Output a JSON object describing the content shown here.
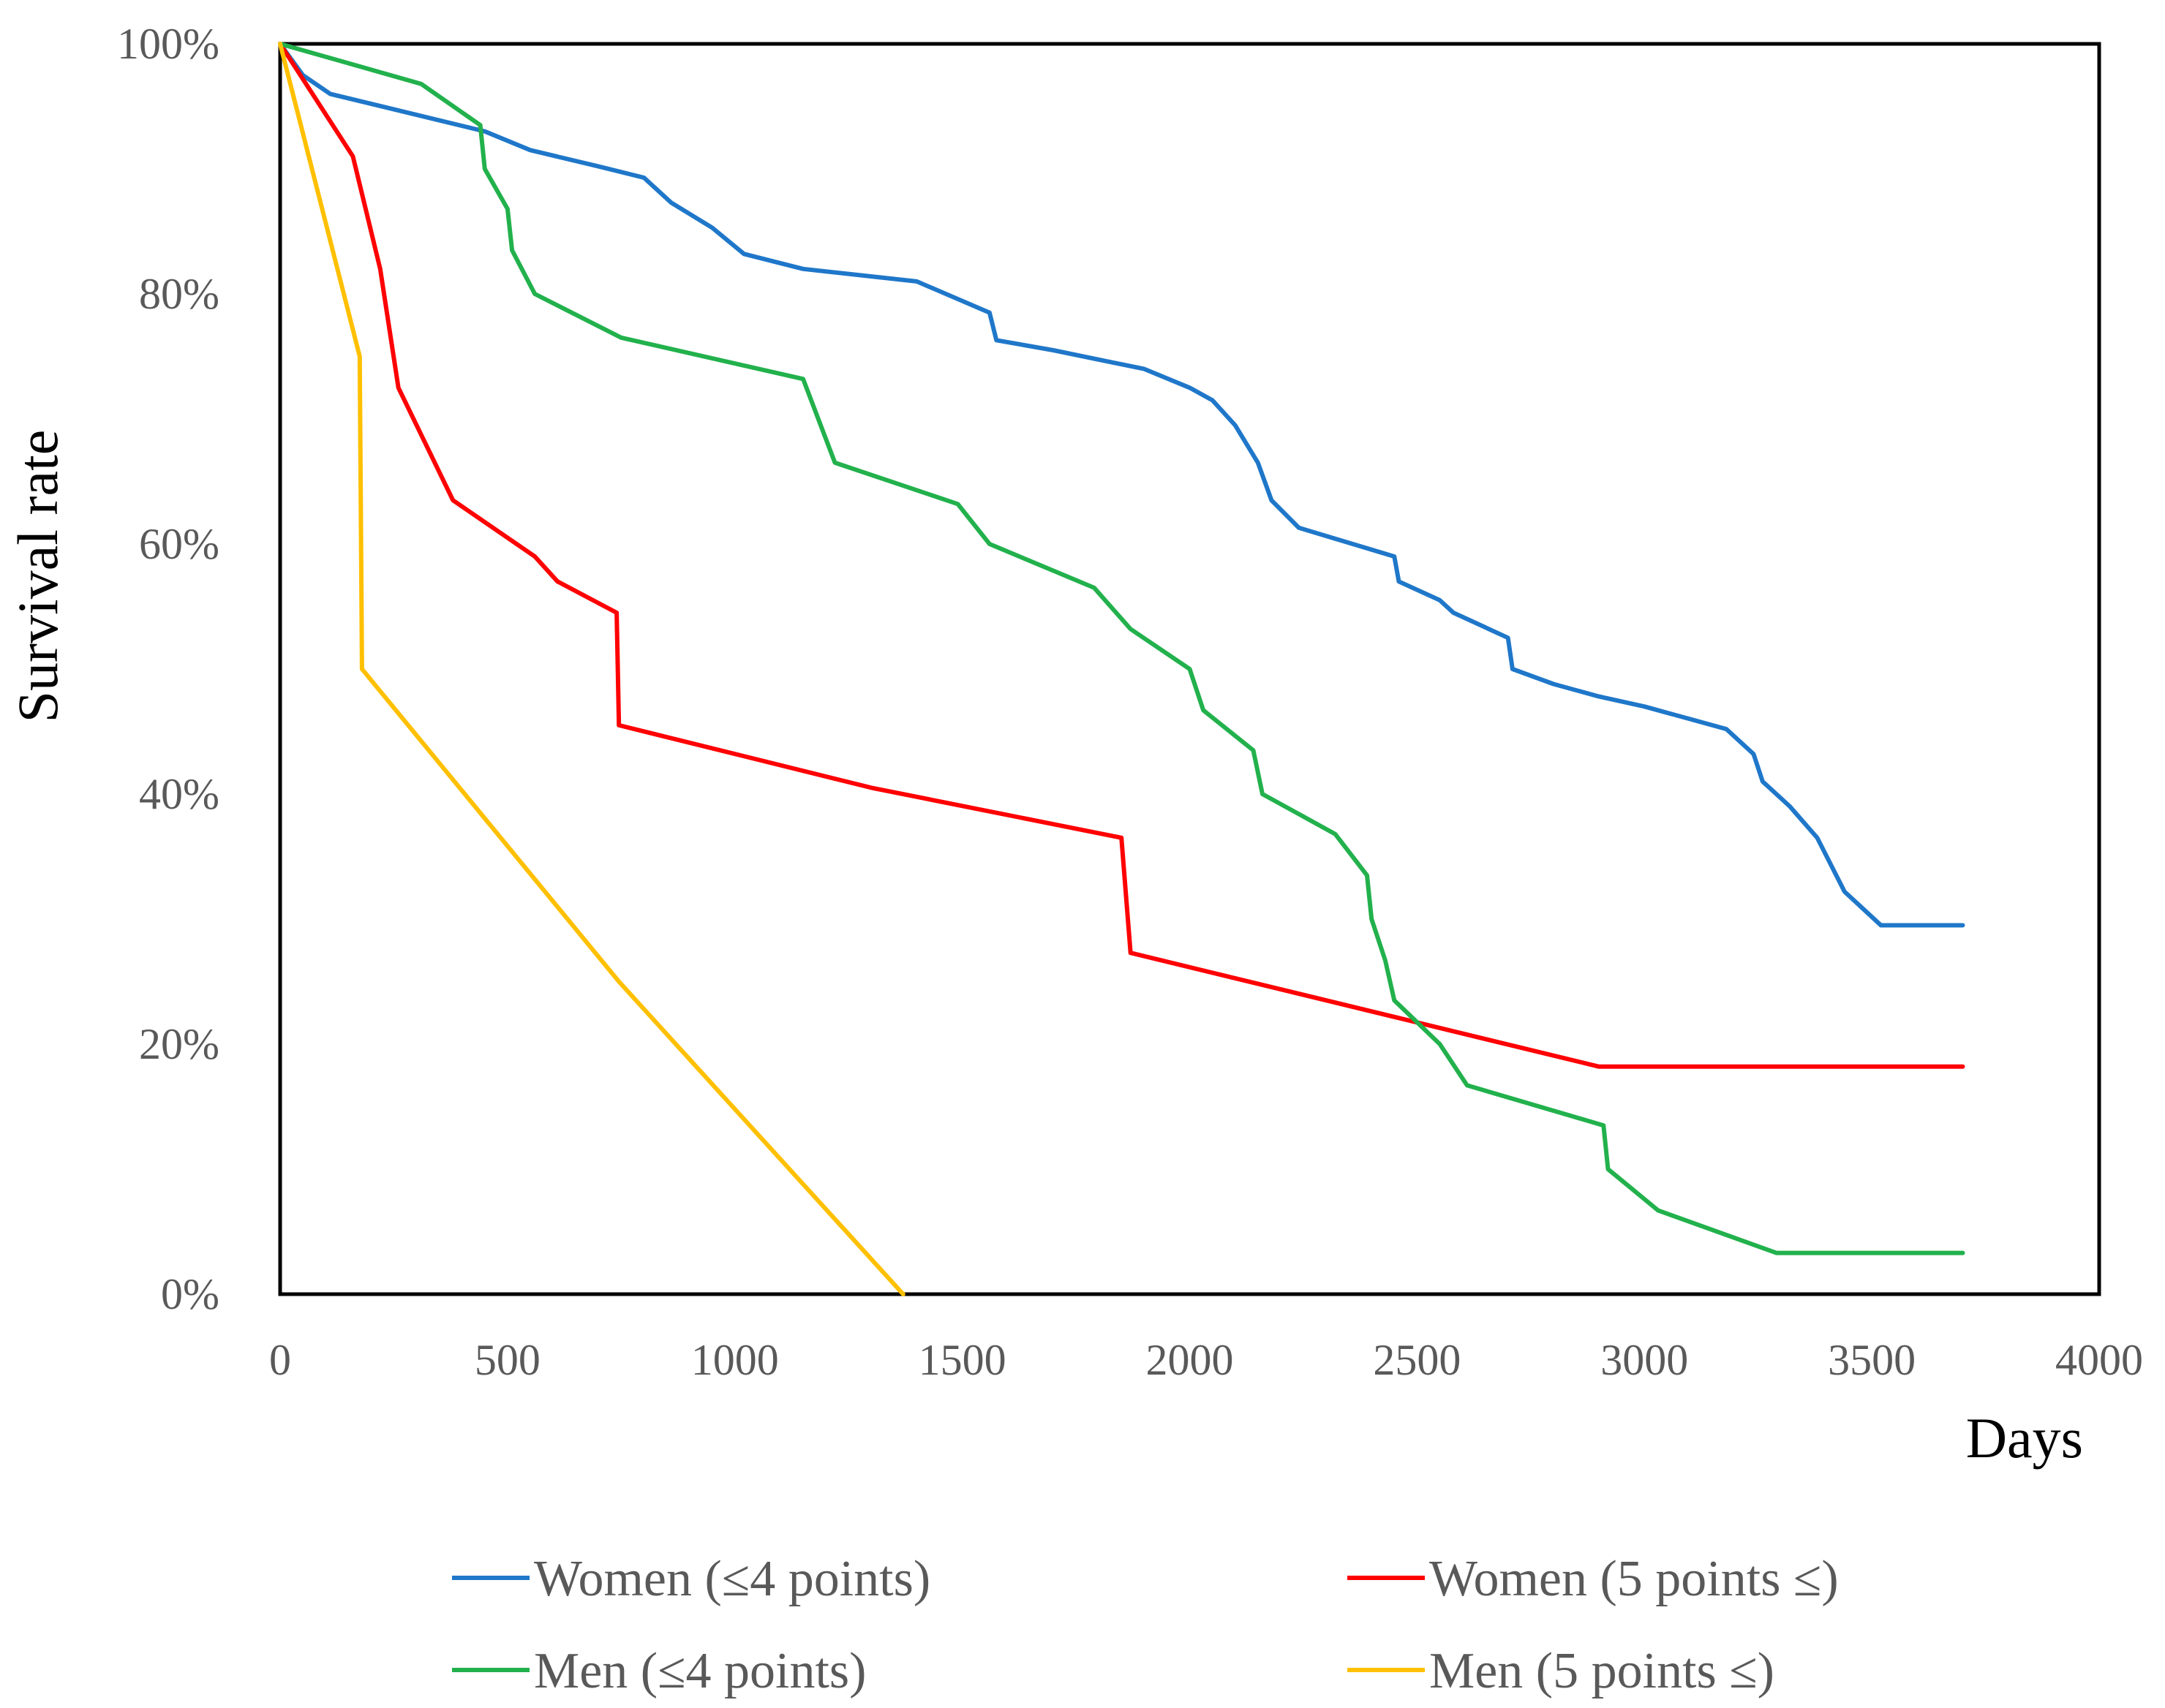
{
  "chart_data": {
    "type": "line",
    "title": "",
    "xlabel": "Days",
    "ylabel": "Survival rate",
    "xlim": [
      0,
      4000
    ],
    "ylim": [
      0,
      100
    ],
    "x_ticks": [
      0,
      500,
      1000,
      1500,
      2000,
      2500,
      3000,
      3500,
      4000
    ],
    "x_tick_labels": [
      "0",
      "500",
      "1000",
      "1500",
      "2000",
      "2500",
      "3000",
      "3500",
      "4000"
    ],
    "y_ticks": [
      0,
      20,
      40,
      60,
      80,
      100
    ],
    "y_tick_labels": [
      "0%",
      "20%",
      "40%",
      "60%",
      "80%",
      "100%"
    ],
    "grid": false,
    "legend_position": "bottom",
    "series": [
      {
        "name": "Women (≤4 points)",
        "color": "#1f77c9",
        "points": [
          [
            0,
            100
          ],
          [
            50,
            97.5
          ],
          [
            110,
            96
          ],
          [
            450,
            93
          ],
          [
            550,
            91.5
          ],
          [
            700,
            90.2
          ],
          [
            800,
            89.3
          ],
          [
            860,
            87.3
          ],
          [
            950,
            85.3
          ],
          [
            1020,
            83.2
          ],
          [
            1150,
            82
          ],
          [
            1400,
            81
          ],
          [
            1560,
            78.5
          ],
          [
            1575,
            76.3
          ],
          [
            1700,
            75.5
          ],
          [
            1900,
            74
          ],
          [
            2000,
            72.5
          ],
          [
            2050,
            71.5
          ],
          [
            2100,
            69.5
          ],
          [
            2150,
            66.5
          ],
          [
            2180,
            63.5
          ],
          [
            2240,
            61.3
          ],
          [
            2450,
            59
          ],
          [
            2460,
            57
          ],
          [
            2550,
            55.5
          ],
          [
            2580,
            54.5
          ],
          [
            2700,
            52.5
          ],
          [
            2710,
            50
          ],
          [
            2800,
            48.8
          ],
          [
            2900,
            47.8
          ],
          [
            3000,
            47
          ],
          [
            3100,
            46
          ],
          [
            3180,
            45.2
          ],
          [
            3240,
            43.2
          ],
          [
            3260,
            41
          ],
          [
            3320,
            39
          ],
          [
            3380,
            36.5
          ],
          [
            3440,
            32.2
          ],
          [
            3520,
            29.5
          ],
          [
            3700,
            29.5
          ]
        ]
      },
      {
        "name": "Women (5 points ≤)",
        "color": "#ff0000",
        "points": [
          [
            0,
            100
          ],
          [
            160,
            91
          ],
          [
            220,
            82
          ],
          [
            260,
            72.5
          ],
          [
            380,
            63.5
          ],
          [
            560,
            59
          ],
          [
            610,
            57
          ],
          [
            740,
            54.5
          ],
          [
            745,
            45.5
          ],
          [
            1300,
            40.5
          ],
          [
            1850,
            36.5
          ],
          [
            1870,
            27.3
          ],
          [
            2900,
            18.2
          ],
          [
            3700,
            18.2
          ]
        ]
      },
      {
        "name": "Men (≤4 points)",
        "color": "#22b14c",
        "points": [
          [
            0,
            100
          ],
          [
            310,
            96.8
          ],
          [
            440,
            93.5
          ],
          [
            450,
            90
          ],
          [
            500,
            86.8
          ],
          [
            510,
            83.5
          ],
          [
            560,
            80
          ],
          [
            750,
            76.5
          ],
          [
            1150,
            73.2
          ],
          [
            1220,
            66.5
          ],
          [
            1490,
            63.2
          ],
          [
            1560,
            60
          ],
          [
            1790,
            56.5
          ],
          [
            1870,
            53.2
          ],
          [
            2000,
            50
          ],
          [
            2030,
            46.7
          ],
          [
            2140,
            43.5
          ],
          [
            2160,
            40
          ],
          [
            2320,
            36.8
          ],
          [
            2390,
            33.5
          ],
          [
            2400,
            30
          ],
          [
            2430,
            26.7
          ],
          [
            2450,
            23.5
          ],
          [
            2550,
            20
          ],
          [
            2610,
            16.7
          ],
          [
            2910,
            13.5
          ],
          [
            2920,
            10
          ],
          [
            3030,
            6.7
          ],
          [
            3290,
            3.3
          ],
          [
            3700,
            3.3
          ]
        ]
      },
      {
        "name": "Men (5 points ≤)",
        "color": "#ffc000",
        "points": [
          [
            0,
            100
          ],
          [
            175,
            75
          ],
          [
            180,
            50
          ],
          [
            745,
            25
          ],
          [
            1370,
            0
          ]
        ]
      }
    ]
  }
}
